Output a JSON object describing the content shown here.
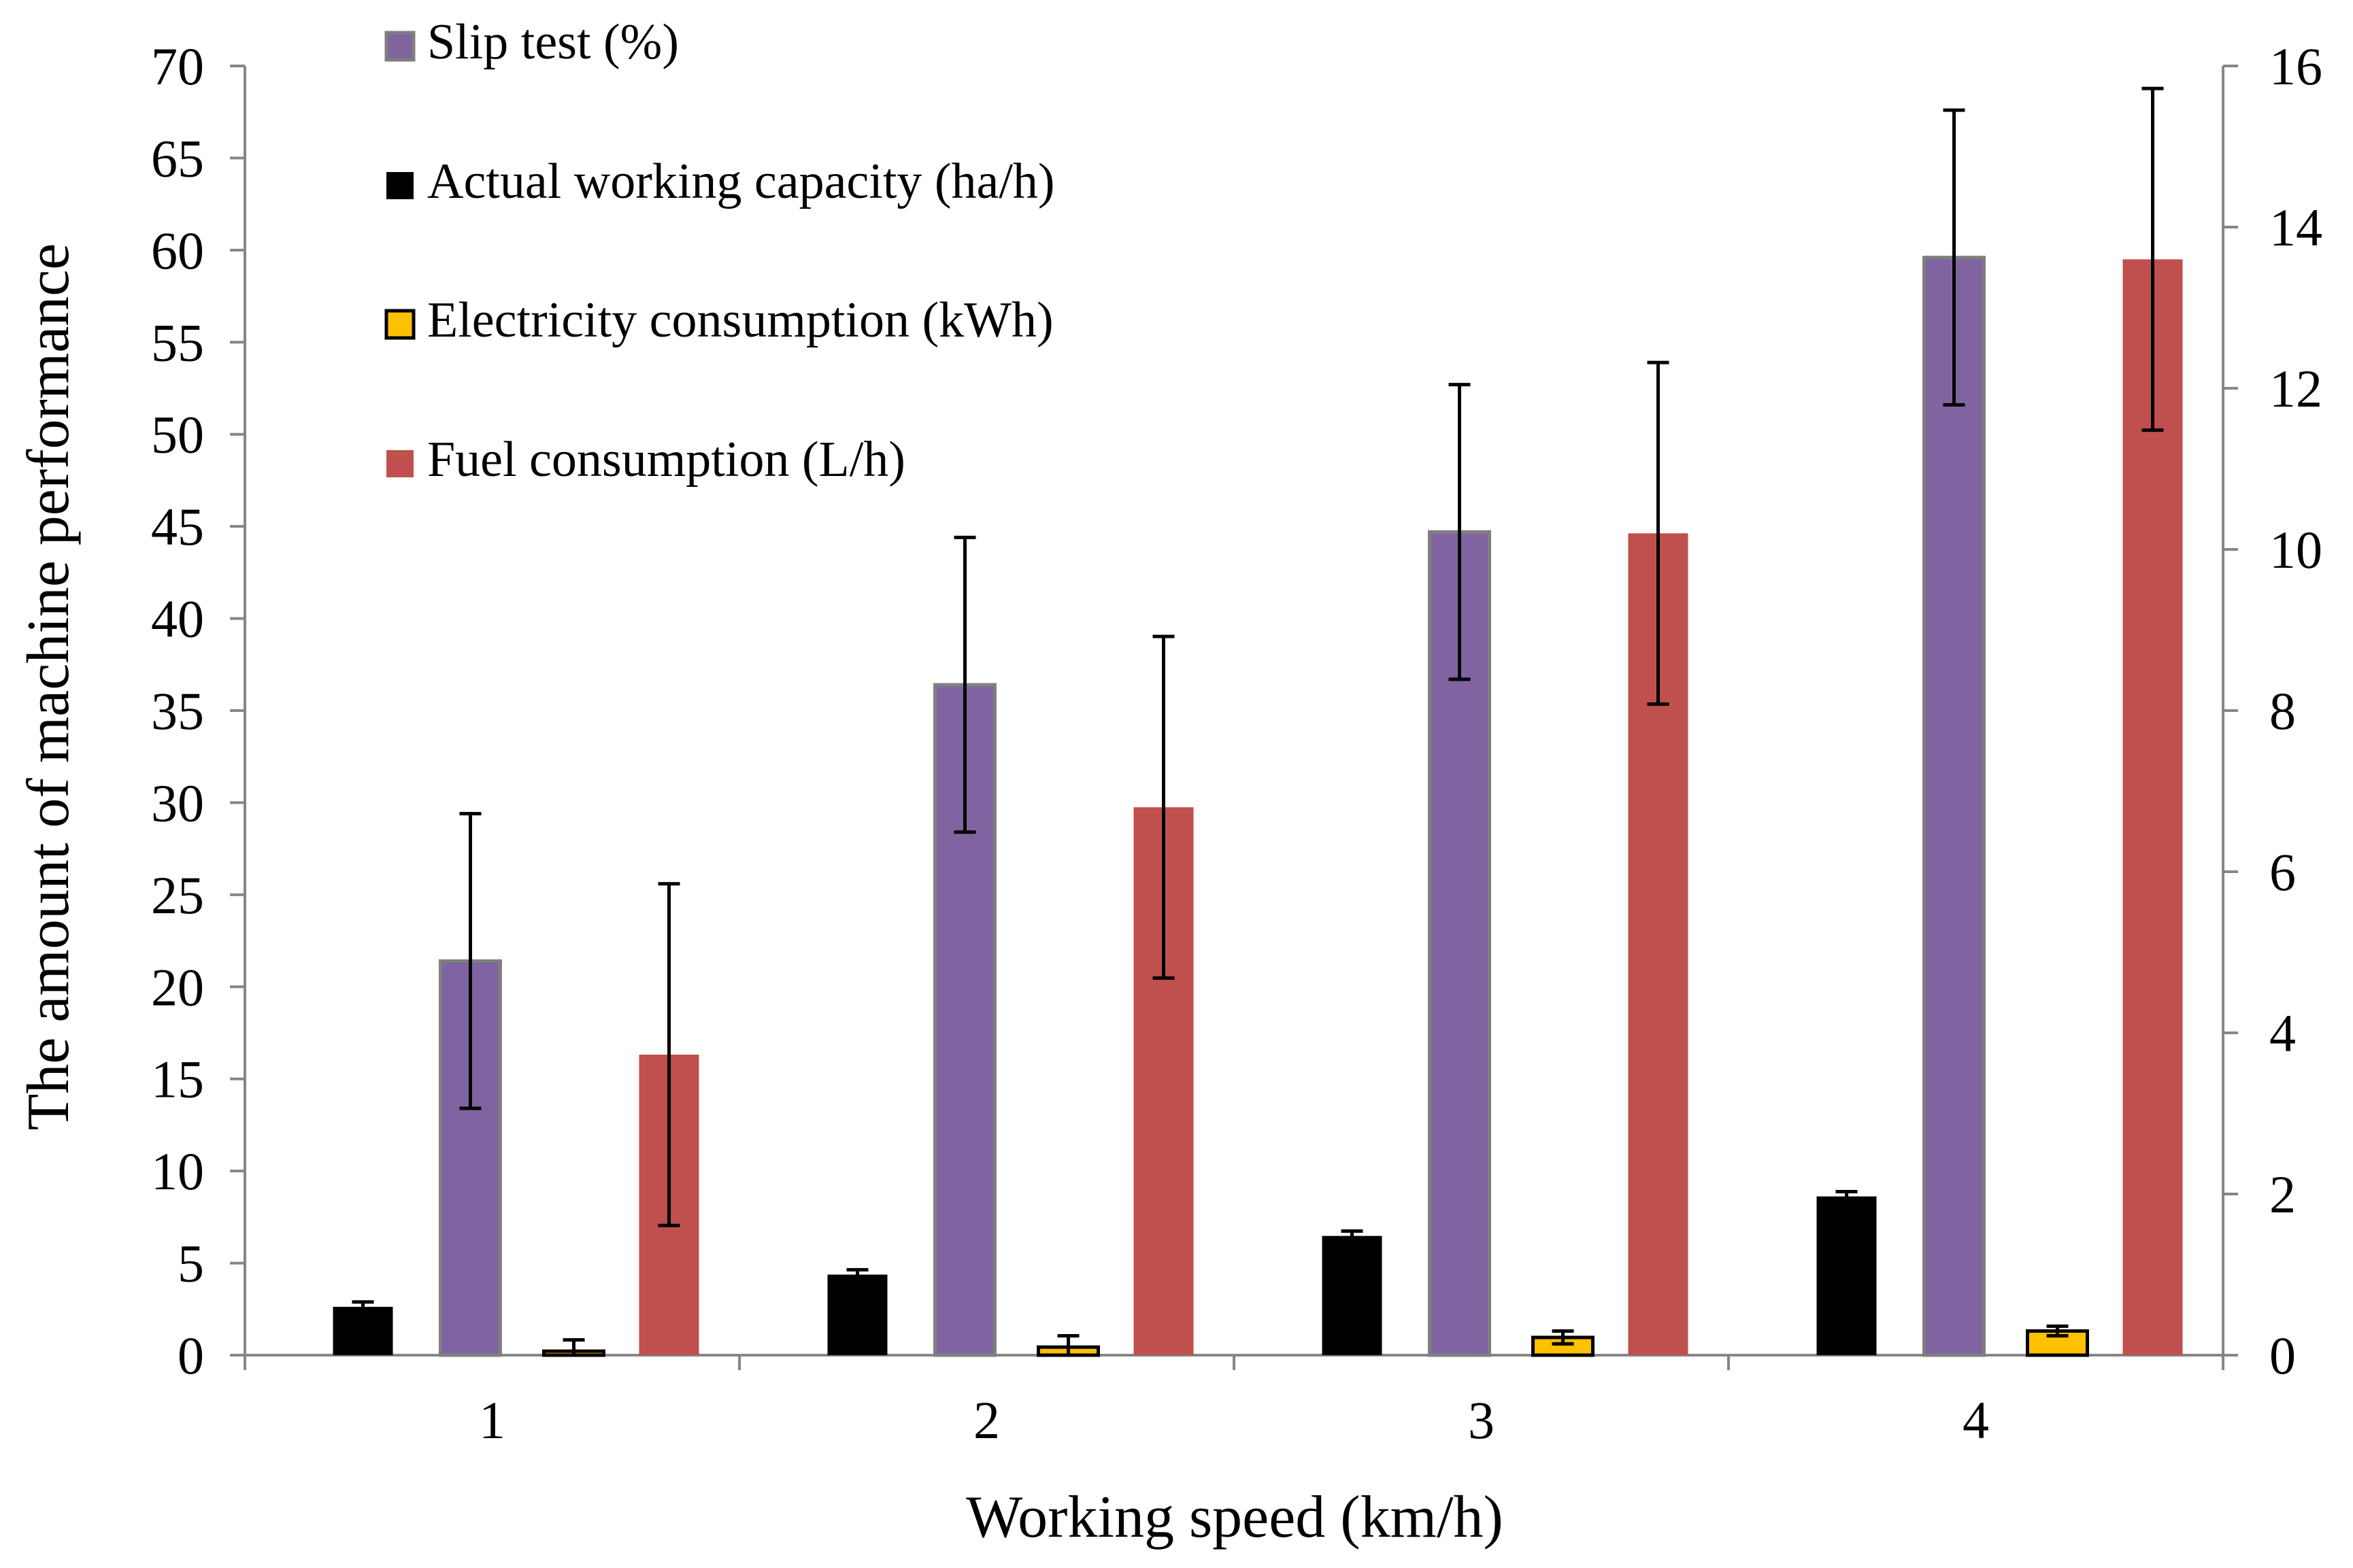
{
  "chart_data": {
    "type": "bar",
    "title": "",
    "xlabel": "Working speed (km/h)",
    "ylabel": "The amount of machine performance",
    "categories": [
      "1",
      "2",
      "3",
      "4"
    ],
    "y_left": {
      "min": 0,
      "max": 70,
      "step": 5,
      "ticks": [
        "0",
        "5",
        "10",
        "15",
        "20",
        "25",
        "30",
        "35",
        "40",
        "45",
        "50",
        "55",
        "60",
        "65",
        "70"
      ]
    },
    "y_right": {
      "min": 0,
      "max": 16,
      "step": 2,
      "ticks": [
        "0",
        "2",
        "4",
        "6",
        "8",
        "10",
        "12",
        "14",
        "16"
      ]
    },
    "grid": false,
    "legend_position": "top-left",
    "series": [
      {
        "name": "Actual working capacity (ha/h)",
        "axis": "right",
        "color": "#000000",
        "values": [
          0.6,
          1.0,
          1.48,
          1.97
        ],
        "errors": [
          0.06,
          0.06,
          0.06,
          0.06
        ]
      },
      {
        "name": "Slip test (%)",
        "axis": "left",
        "color": "#8064A2",
        "stroke": "#7F7F7F",
        "values": [
          21.4,
          36.4,
          44.7,
          59.6
        ],
        "errors": [
          8.0,
          8.0,
          8.0,
          8.0
        ]
      },
      {
        "name": "Electricity consumption (kWh)",
        "axis": "right",
        "color": "#FFC000",
        "stroke": "#000000",
        "values": [
          0.05,
          0.1,
          0.22,
          0.3
        ],
        "errors": [
          0.14,
          0.14,
          0.08,
          0.06
        ]
      },
      {
        "name": "Fuel consumption (L/h)",
        "axis": "right",
        "color": "#C0504D",
        "values": [
          3.73,
          6.8,
          10.2,
          13.6
        ],
        "errors": [
          2.12,
          2.12,
          2.12,
          2.12
        ]
      }
    ],
    "legend_order": [
      "Slip test (%)",
      "Actual working capacity (ha/h)",
      "Electricity consumption (kWh)",
      "Fuel consumption (L/h)"
    ]
  }
}
